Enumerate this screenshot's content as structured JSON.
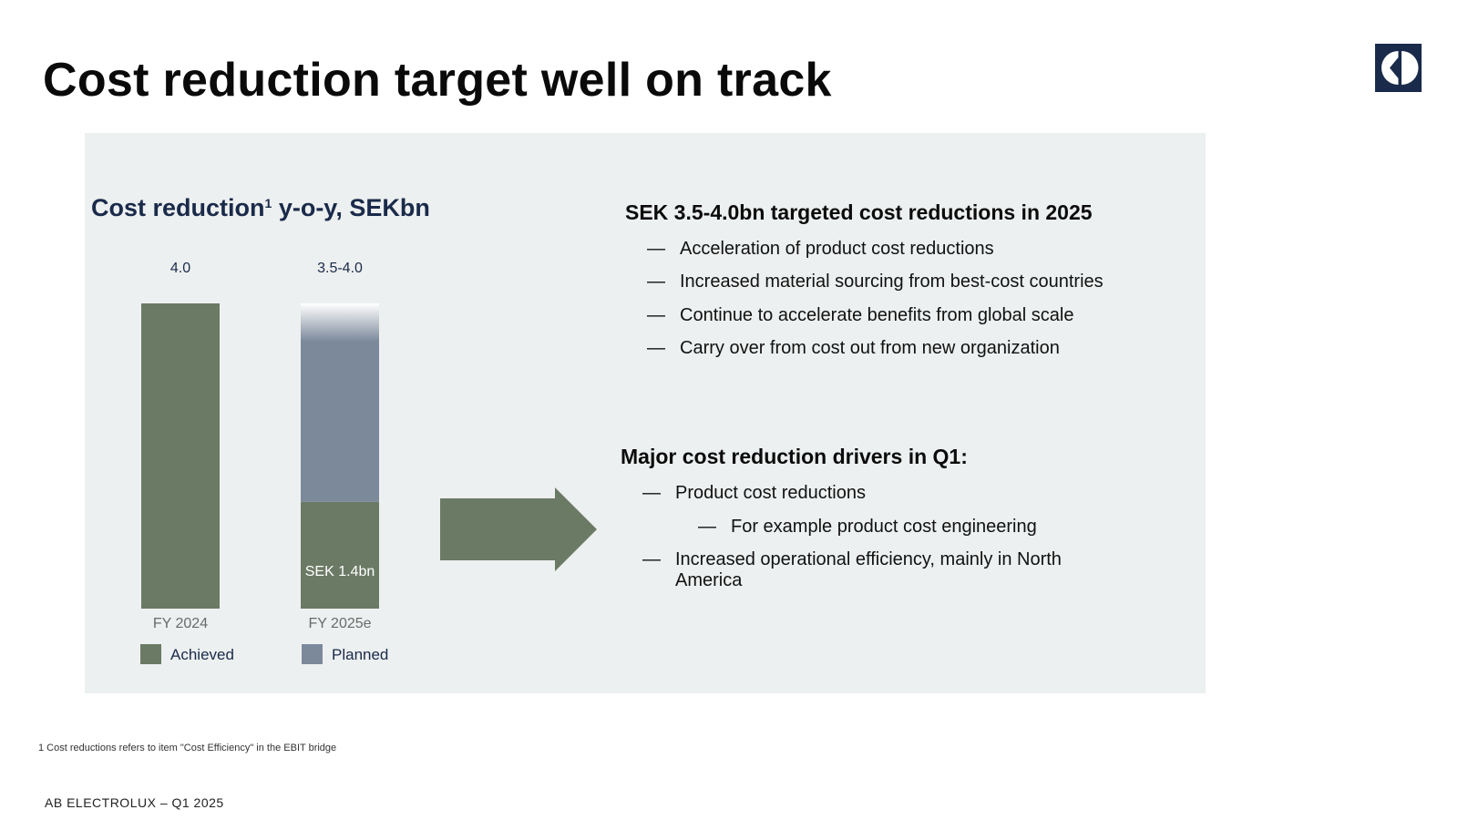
{
  "page": {
    "title": "Cost reduction target well on track",
    "logo_name": "electrolux-logo",
    "footnote": "1 Cost reductions refers to item \"Cost Efficiency\" in the EBIT bridge",
    "footer": "AB ELECTROLUX – Q1 2025"
  },
  "chart_title": {
    "main": "Cost reduction",
    "superscript": "1",
    "rest": " y-o-y, SEKbn"
  },
  "colors": {
    "achieved": "#6b7a65",
    "planned": "#7b899b",
    "panel": "#edf0f0",
    "logo": "#1a2a4a"
  },
  "chart_data": {
    "type": "bar",
    "stacked": true,
    "categories": [
      "FY 2024",
      "FY 2025e"
    ],
    "series": [
      {
        "name": "Achieved",
        "values": [
          4.0,
          1.4
        ]
      },
      {
        "name": "Planned",
        "values": [
          0,
          2.35
        ]
      }
    ],
    "uncertainty_band": {
      "category": "FY 2025e",
      "from": 3.5,
      "to": 4.0
    },
    "total_labels": [
      "4.0",
      "3.5-4.0"
    ],
    "segment_labels": [
      {
        "category": "FY 2025e",
        "series": "Achieved",
        "text": "SEK 1.4bn"
      }
    ],
    "ylim": [
      0,
      4.0
    ],
    "legend": [
      "Achieved",
      "Planned"
    ],
    "legend_position": "bottom",
    "grid": false
  },
  "right": {
    "section1": {
      "title": "SEK 3.5-4.0bn targeted cost reductions in 2025",
      "bullets": [
        "Acceleration of product cost reductions",
        "Increased material sourcing from best-cost countries",
        "Continue to accelerate benefits from global scale",
        "Carry over from cost out from new organization"
      ]
    },
    "section2": {
      "title": "Major cost reduction drivers in Q1:",
      "bullet1": "Product cost reductions",
      "sub_bullet": "For example product cost engineering",
      "bullet2": "Increased operational efficiency, mainly in North America"
    },
    "dash": "—"
  }
}
